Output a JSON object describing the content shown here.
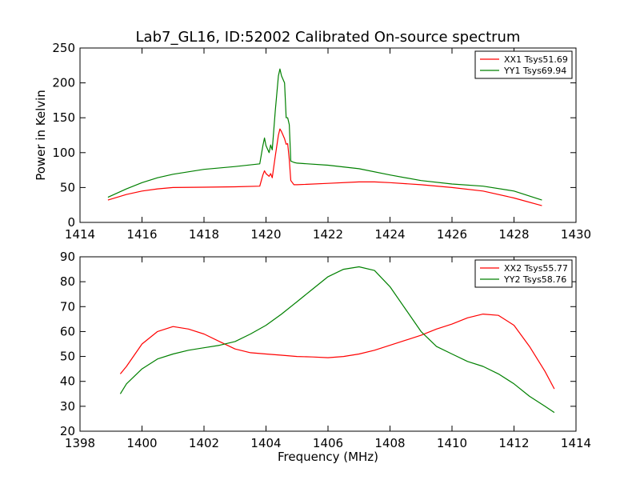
{
  "colors": {
    "xx": "#ff0000",
    "yy": "#008000",
    "frame": "#000000",
    "background": "#ffffff"
  },
  "figure": {
    "title": "Lab7_GL16, ID:52002 Calibrated On-source spectrum"
  },
  "chart_data": [
    {
      "type": "line",
      "title": "Lab7_GL16, ID:52002 Calibrated On-source spectrum",
      "xlabel": "",
      "ylabel": "Power in Kelvin",
      "xlim": [
        1414,
        1430
      ],
      "ylim": [
        0,
        250
      ],
      "xticks": [
        "1414",
        "1416",
        "1418",
        "1420",
        "1422",
        "1424",
        "1426",
        "1428",
        "1430"
      ],
      "yticks": [
        "0",
        "50",
        "100",
        "150",
        "200",
        "250"
      ],
      "grid": false,
      "legend_position": "top-right",
      "series": [
        {
          "name": "XX1 Tsys51.69",
          "color": "#ff0000",
          "x": [
            1414.9,
            1415.5,
            1416,
            1416.5,
            1417,
            1418,
            1419,
            1419.8,
            1419.9,
            1419.95,
            1420.0,
            1420.1,
            1420.15,
            1420.2,
            1420.3,
            1420.4,
            1420.45,
            1420.5,
            1420.6,
            1420.65,
            1420.7,
            1420.75,
            1420.8,
            1420.9,
            1421,
            1422,
            1423,
            1423.5,
            1424,
            1425,
            1426,
            1427,
            1428,
            1428.9
          ],
          "y": [
            32,
            40,
            45,
            48,
            50,
            50.5,
            51,
            52,
            68,
            74,
            70,
            66,
            70,
            64,
            95,
            125,
            134,
            130,
            120,
            112,
            113,
            90,
            60,
            54,
            54,
            56,
            58,
            58,
            57,
            54,
            50,
            45,
            35,
            24
          ]
        },
        {
          "name": "YY1 Tsys69.94",
          "color": "#008000",
          "x": [
            1414.9,
            1415.5,
            1416,
            1416.5,
            1417,
            1418,
            1419,
            1419.8,
            1419.9,
            1419.95,
            1420.0,
            1420.1,
            1420.15,
            1420.2,
            1420.3,
            1420.4,
            1420.45,
            1420.5,
            1420.6,
            1420.65,
            1420.7,
            1420.75,
            1420.8,
            1420.9,
            1421,
            1422,
            1423,
            1424,
            1425,
            1426,
            1427,
            1428,
            1428.9
          ],
          "y": [
            36,
            48,
            57,
            64,
            69,
            76,
            80,
            84,
            110,
            121,
            110,
            100,
            111,
            104,
            160,
            210,
            220,
            210,
            200,
            150,
            150,
            140,
            88,
            86,
            85,
            82,
            77,
            68,
            60,
            55,
            52,
            45,
            32
          ]
        }
      ]
    },
    {
      "type": "line",
      "title": "",
      "xlabel": "Frequency (MHz)",
      "ylabel": "",
      "xlim": [
        1398,
        1414
      ],
      "ylim": [
        20,
        90
      ],
      "xticks": [
        "1398",
        "1400",
        "1402",
        "1404",
        "1406",
        "1408",
        "1410",
        "1412",
        "1414"
      ],
      "yticks": [
        "20",
        "30",
        "40",
        "50",
        "60",
        "70",
        "80",
        "90"
      ],
      "grid": false,
      "legend_position": "top-right",
      "series": [
        {
          "name": "XX2 Tsys55.77",
          "color": "#ff0000",
          "x": [
            1399.3,
            1399.5,
            1400,
            1400.5,
            1401,
            1401.5,
            1402,
            1402.5,
            1403,
            1403.5,
            1404,
            1404.5,
            1405,
            1405.5,
            1406,
            1406.5,
            1407,
            1407.5,
            1408,
            1408.5,
            1409,
            1409.5,
            1410,
            1410.5,
            1411,
            1411.5,
            1412,
            1412.5,
            1413,
            1413.3
          ],
          "y": [
            43,
            46,
            55,
            60,
            62,
            61,
            59,
            56,
            53,
            51.5,
            51,
            50.5,
            50,
            49.8,
            49.5,
            50,
            51,
            52.5,
            54.5,
            56.5,
            58.5,
            61,
            63,
            65.5,
            67,
            66.5,
            62.5,
            54,
            44,
            37
          ]
        },
        {
          "name": "YY2 Tsys58.76",
          "color": "#008000",
          "x": [
            1399.3,
            1399.5,
            1400,
            1400.5,
            1401,
            1401.5,
            1402,
            1402.5,
            1403,
            1403.5,
            1404,
            1404.5,
            1405,
            1405.5,
            1406,
            1406.5,
            1407,
            1407.5,
            1408,
            1408.5,
            1409,
            1409.5,
            1410,
            1410.5,
            1411,
            1411.5,
            1412,
            1412.5,
            1413,
            1413.3
          ],
          "y": [
            35,
            39,
            45,
            49,
            51,
            52.5,
            53.5,
            54.5,
            56,
            59,
            62.5,
            67,
            72,
            77,
            82,
            85,
            86,
            84.5,
            78,
            69,
            60,
            54,
            51,
            48,
            46,
            43,
            39,
            34,
            30,
            27.5
          ]
        }
      ]
    }
  ]
}
